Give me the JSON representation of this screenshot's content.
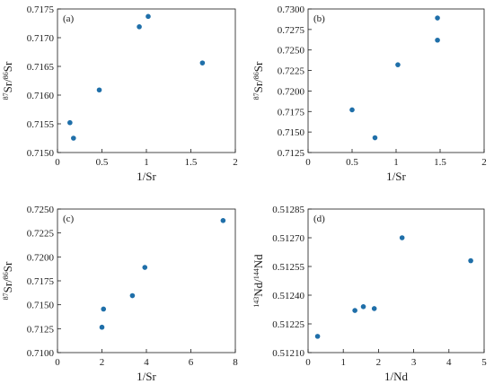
{
  "marker_color": "#1f6fa9",
  "chart_data": [
    {
      "type": "scatter",
      "panel_label": "(a)",
      "xlabel": "1/Sr",
      "ylabel_parts": [
        {
          "text": "87",
          "sup": true
        },
        {
          "text": "Sr/",
          "sup": false
        },
        {
          "text": "86",
          "sup": true
        },
        {
          "text": "Sr",
          "sup": false
        }
      ],
      "xlim": [
        0,
        2
      ],
      "ylim": [
        0.715,
        0.7175
      ],
      "xticks": [
        "0",
        "0.5",
        "1",
        "1.5",
        "2"
      ],
      "yticks": [
        "0.7150",
        "0.7155",
        "0.7160",
        "0.7165",
        "0.7170",
        "0.7175"
      ],
      "points": [
        {
          "x": 0.14,
          "y": 0.71552
        },
        {
          "x": 0.18,
          "y": 0.71525
        },
        {
          "x": 0.47,
          "y": 0.71609
        },
        {
          "x": 0.92,
          "y": 0.71719
        },
        {
          "x": 1.02,
          "y": 0.71737
        },
        {
          "x": 1.63,
          "y": 0.71656
        }
      ]
    },
    {
      "type": "scatter",
      "panel_label": "(b)",
      "xlabel": "1/Sr",
      "ylabel_parts": [
        {
          "text": "87",
          "sup": true
        },
        {
          "text": "Sr/",
          "sup": false
        },
        {
          "text": "86",
          "sup": true
        },
        {
          "text": "Sr",
          "sup": false
        }
      ],
      "xlim": [
        0,
        2
      ],
      "ylim": [
        0.7125,
        0.73
      ],
      "xticks": [
        "0",
        "0.5",
        "1",
        "1.5",
        "2"
      ],
      "yticks": [
        "0.7125",
        "0.7150",
        "0.7175",
        "0.7200",
        "0.7225",
        "0.7250",
        "0.7275",
        "0.7300"
      ],
      "points": [
        {
          "x": 0.5,
          "y": 0.7177
        },
        {
          "x": 0.76,
          "y": 0.7143
        },
        {
          "x": 1.02,
          "y": 0.7232
        },
        {
          "x": 1.47,
          "y": 0.7289
        },
        {
          "x": 1.47,
          "y": 0.7262
        }
      ]
    },
    {
      "type": "scatter",
      "panel_label": "(c)",
      "xlabel": "1/Sr",
      "ylabel_parts": [
        {
          "text": "87",
          "sup": true
        },
        {
          "text": "Sr/",
          "sup": false
        },
        {
          "text": "86",
          "sup": true
        },
        {
          "text": "Sr",
          "sup": false
        }
      ],
      "xlim": [
        0,
        8
      ],
      "ylim": [
        0.71,
        0.725
      ],
      "xticks": [
        "0",
        "2",
        "4",
        "6",
        "8"
      ],
      "yticks": [
        "0.7100",
        "0.7125",
        "0.7150",
        "0.7175",
        "0.7200",
        "0.7225",
        "0.7250"
      ],
      "points": [
        {
          "x": 2.0,
          "y": 0.71265
        },
        {
          "x": 2.07,
          "y": 0.71455
        },
        {
          "x": 3.37,
          "y": 0.71595
        },
        {
          "x": 3.93,
          "y": 0.7189
        },
        {
          "x": 7.45,
          "y": 0.7238
        }
      ]
    },
    {
      "type": "scatter",
      "panel_label": "(d)",
      "xlabel": "1/Nd",
      "ylabel_parts": [
        {
          "text": "143",
          "sup": true
        },
        {
          "text": "Nd/",
          "sup": false
        },
        {
          "text": "144",
          "sup": true
        },
        {
          "text": "Nd",
          "sup": false
        }
      ],
      "xlim": [
        0,
        5
      ],
      "ylim": [
        0.5121,
        0.51285
      ],
      "xticks": [
        "0",
        "1",
        "2",
        "3",
        "4",
        "5"
      ],
      "yticks": [
        "0.51210",
        "0.51225",
        "0.51240",
        "0.51255",
        "0.51270",
        "0.51285"
      ],
      "points": [
        {
          "x": 0.27,
          "y": 0.512185
        },
        {
          "x": 1.33,
          "y": 0.51232
        },
        {
          "x": 1.57,
          "y": 0.51234
        },
        {
          "x": 1.88,
          "y": 0.51233
        },
        {
          "x": 2.67,
          "y": 0.5127
        },
        {
          "x": 4.62,
          "y": 0.51258
        }
      ]
    }
  ]
}
